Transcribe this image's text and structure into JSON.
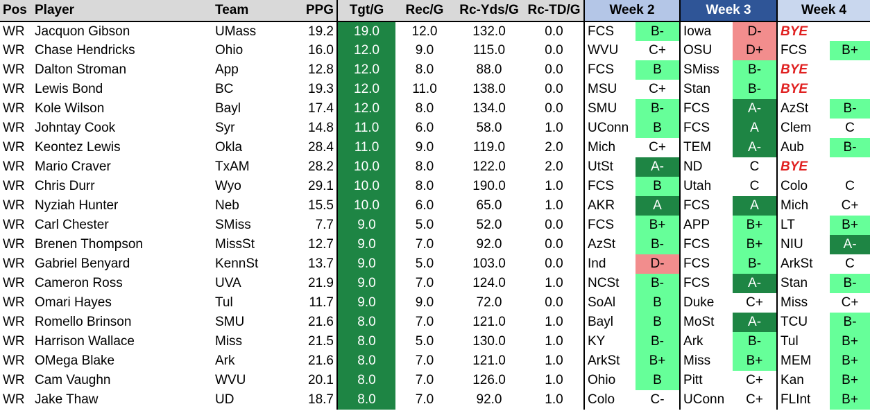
{
  "headers": {
    "pos": "Pos",
    "player": "Player",
    "team": "Team",
    "ppg": "PPG",
    "tgt": "Tgt/G",
    "rec": "Rec/G",
    "yds": "Rc-Yds/G",
    "td": "Rc-TD/G",
    "week2": "Week 2",
    "week3": "Week 3",
    "week4": "Week 4"
  },
  "colors": {
    "good": "#66ff99",
    "great": "#1e8544",
    "bad": "#f28d8d",
    "bye": "#e02020",
    "week3_header": "#2f5597"
  },
  "rows": [
    {
      "pos": "WR",
      "player": "Jacquon Gibson",
      "team": "UMass",
      "ppg": "19.2",
      "tgt": "19.0",
      "rec": "12.0",
      "yds": "132.0",
      "td": "0.0",
      "w2": {
        "opp": "FCS",
        "grade": "B-",
        "tone": "good"
      },
      "w3": {
        "opp": "Iowa",
        "grade": "D-",
        "tone": "bad"
      },
      "w4": {
        "opp": "BYE",
        "grade": "",
        "tone": "none",
        "bye": true
      }
    },
    {
      "pos": "WR",
      "player": "Chase Hendricks",
      "team": "Ohio",
      "ppg": "16.0",
      "tgt": "12.0",
      "rec": "9.0",
      "yds": "115.0",
      "td": "0.0",
      "w2": {
        "opp": "WVU",
        "grade": "C+",
        "tone": "none"
      },
      "w3": {
        "opp": "OSU",
        "grade": "D+",
        "tone": "bad"
      },
      "w4": {
        "opp": "FCS",
        "grade": "B+",
        "tone": "good"
      }
    },
    {
      "pos": "WR",
      "player": "Dalton Stroman",
      "team": "App",
      "ppg": "12.8",
      "tgt": "12.0",
      "rec": "8.0",
      "yds": "88.0",
      "td": "0.0",
      "w2": {
        "opp": "FCS",
        "grade": "B",
        "tone": "good"
      },
      "w3": {
        "opp": "SMiss",
        "grade": "B-",
        "tone": "good"
      },
      "w4": {
        "opp": "BYE",
        "grade": "",
        "tone": "none",
        "bye": true
      }
    },
    {
      "pos": "WR",
      "player": "Lewis Bond",
      "team": "BC",
      "ppg": "19.3",
      "tgt": "12.0",
      "rec": "11.0",
      "yds": "138.0",
      "td": "0.0",
      "w2": {
        "opp": "MSU",
        "grade": "C+",
        "tone": "none"
      },
      "w3": {
        "opp": "Stan",
        "grade": "B-",
        "tone": "good"
      },
      "w4": {
        "opp": "BYE",
        "grade": "",
        "tone": "none",
        "bye": true
      }
    },
    {
      "pos": "WR",
      "player": "Kole Wilson",
      "team": "Bayl",
      "ppg": "17.4",
      "tgt": "12.0",
      "rec": "8.0",
      "yds": "134.0",
      "td": "0.0",
      "w2": {
        "opp": "SMU",
        "grade": "B-",
        "tone": "good"
      },
      "w3": {
        "opp": "FCS",
        "grade": "A-",
        "tone": "great"
      },
      "w4": {
        "opp": "AzSt",
        "grade": "B-",
        "tone": "good"
      }
    },
    {
      "pos": "WR",
      "player": "Johntay Cook",
      "team": "Syr",
      "ppg": "14.8",
      "tgt": "11.0",
      "rec": "6.0",
      "yds": "58.0",
      "td": "1.0",
      "w2": {
        "opp": "UConn",
        "grade": "B",
        "tone": "good"
      },
      "w3": {
        "opp": "FCS",
        "grade": "A",
        "tone": "great"
      },
      "w4": {
        "opp": "Clem",
        "grade": "C",
        "tone": "none"
      }
    },
    {
      "pos": "WR",
      "player": "Keontez Lewis",
      "team": "Okla",
      "ppg": "28.4",
      "tgt": "11.0",
      "rec": "9.0",
      "yds": "119.0",
      "td": "2.0",
      "w2": {
        "opp": "Mich",
        "grade": "C+",
        "tone": "none"
      },
      "w3": {
        "opp": "TEM",
        "grade": "A-",
        "tone": "great"
      },
      "w4": {
        "opp": "Aub",
        "grade": "B-",
        "tone": "good"
      }
    },
    {
      "pos": "WR",
      "player": "Mario Craver",
      "team": "TxAM",
      "ppg": "28.2",
      "tgt": "10.0",
      "rec": "8.0",
      "yds": "122.0",
      "td": "2.0",
      "w2": {
        "opp": "UtSt",
        "grade": "A-",
        "tone": "great"
      },
      "w3": {
        "opp": "ND",
        "grade": "C",
        "tone": "none"
      },
      "w4": {
        "opp": "BYE",
        "grade": "",
        "tone": "none",
        "bye": true
      }
    },
    {
      "pos": "WR",
      "player": "Chris Durr",
      "team": "Wyo",
      "ppg": "29.1",
      "tgt": "10.0",
      "rec": "8.0",
      "yds": "190.0",
      "td": "1.0",
      "w2": {
        "opp": "FCS",
        "grade": "B",
        "tone": "good"
      },
      "w3": {
        "opp": "Utah",
        "grade": "C",
        "tone": "none"
      },
      "w4": {
        "opp": "Colo",
        "grade": "C",
        "tone": "none"
      }
    },
    {
      "pos": "WR",
      "player": "Nyziah Hunter",
      "team": "Neb",
      "ppg": "15.5",
      "tgt": "10.0",
      "rec": "6.0",
      "yds": "65.0",
      "td": "1.0",
      "w2": {
        "opp": "AKR",
        "grade": "A",
        "tone": "great"
      },
      "w3": {
        "opp": "FCS",
        "grade": "A",
        "tone": "great"
      },
      "w4": {
        "opp": "Mich",
        "grade": "C+",
        "tone": "none"
      }
    },
    {
      "pos": "WR",
      "player": "Carl Chester",
      "team": "SMiss",
      "ppg": "7.7",
      "tgt": "9.0",
      "rec": "5.0",
      "yds": "52.0",
      "td": "0.0",
      "w2": {
        "opp": "FCS",
        "grade": "B+",
        "tone": "good"
      },
      "w3": {
        "opp": "APP",
        "grade": "B+",
        "tone": "good"
      },
      "w4": {
        "opp": "LT",
        "grade": "B+",
        "tone": "good"
      }
    },
    {
      "pos": "WR",
      "player": "Brenen Thompson",
      "team": "MissSt",
      "ppg": "12.7",
      "tgt": "9.0",
      "rec": "7.0",
      "yds": "92.0",
      "td": "0.0",
      "w2": {
        "opp": "AzSt",
        "grade": "B-",
        "tone": "good"
      },
      "w3": {
        "opp": "FCS",
        "grade": "B+",
        "tone": "good"
      },
      "w4": {
        "opp": "NIU",
        "grade": "A-",
        "tone": "great"
      }
    },
    {
      "pos": "WR",
      "player": "Gabriel Benyard",
      "team": "KennSt",
      "ppg": "13.7",
      "tgt": "9.0",
      "rec": "5.0",
      "yds": "103.0",
      "td": "0.0",
      "w2": {
        "opp": "Ind",
        "grade": "D-",
        "tone": "bad"
      },
      "w3": {
        "opp": "FCS",
        "grade": "B-",
        "tone": "good"
      },
      "w4": {
        "opp": "ArkSt",
        "grade": "C",
        "tone": "none"
      }
    },
    {
      "pos": "WR",
      "player": "Cameron Ross",
      "team": "UVA",
      "ppg": "21.9",
      "tgt": "9.0",
      "rec": "7.0",
      "yds": "124.0",
      "td": "1.0",
      "w2": {
        "opp": "NCSt",
        "grade": "B-",
        "tone": "good"
      },
      "w3": {
        "opp": "FCS",
        "grade": "A-",
        "tone": "great"
      },
      "w4": {
        "opp": "Stan",
        "grade": "B-",
        "tone": "good"
      }
    },
    {
      "pos": "WR",
      "player": "Omari Hayes",
      "team": "Tul",
      "ppg": "11.7",
      "tgt": "9.0",
      "rec": "9.0",
      "yds": "72.0",
      "td": "0.0",
      "w2": {
        "opp": "SoAl",
        "grade": "B",
        "tone": "good"
      },
      "w3": {
        "opp": "Duke",
        "grade": "C+",
        "tone": "none"
      },
      "w4": {
        "opp": "Miss",
        "grade": "C+",
        "tone": "none"
      }
    },
    {
      "pos": "WR",
      "player": "Romello Brinson",
      "team": "SMU",
      "ppg": "21.6",
      "tgt": "8.0",
      "rec": "7.0",
      "yds": "121.0",
      "td": "1.0",
      "w2": {
        "opp": "Bayl",
        "grade": "B",
        "tone": "good"
      },
      "w3": {
        "opp": "MoSt",
        "grade": "A-",
        "tone": "great"
      },
      "w4": {
        "opp": "TCU",
        "grade": "B-",
        "tone": "good"
      }
    },
    {
      "pos": "WR",
      "player": "Harrison Wallace",
      "team": "Miss",
      "ppg": "21.5",
      "tgt": "8.0",
      "rec": "5.0",
      "yds": "130.0",
      "td": "1.0",
      "w2": {
        "opp": "KY",
        "grade": "B-",
        "tone": "good"
      },
      "w3": {
        "opp": "Ark",
        "grade": "B-",
        "tone": "good"
      },
      "w4": {
        "opp": "Tul",
        "grade": "B+",
        "tone": "good"
      }
    },
    {
      "pos": "WR",
      "player": "OMega Blake",
      "team": "Ark",
      "ppg": "21.6",
      "tgt": "8.0",
      "rec": "7.0",
      "yds": "121.0",
      "td": "1.0",
      "w2": {
        "opp": "ArkSt",
        "grade": "B+",
        "tone": "good"
      },
      "w3": {
        "opp": "Miss",
        "grade": "B+",
        "tone": "good"
      },
      "w4": {
        "opp": "MEM",
        "grade": "B+",
        "tone": "good"
      }
    },
    {
      "pos": "WR",
      "player": "Cam Vaughn",
      "team": "WVU",
      "ppg": "20.1",
      "tgt": "8.0",
      "rec": "7.0",
      "yds": "126.0",
      "td": "1.0",
      "w2": {
        "opp": "Ohio",
        "grade": "B",
        "tone": "good"
      },
      "w3": {
        "opp": "Pitt",
        "grade": "C+",
        "tone": "none"
      },
      "w4": {
        "opp": "Kan",
        "grade": "B+",
        "tone": "good"
      }
    },
    {
      "pos": "WR",
      "player": "Jake Thaw",
      "team": "UD",
      "ppg": "18.7",
      "tgt": "8.0",
      "rec": "7.0",
      "yds": "92.0",
      "td": "1.0",
      "w2": {
        "opp": "Colo",
        "grade": "C-",
        "tone": "none"
      },
      "w3": {
        "opp": "UConn",
        "grade": "C+",
        "tone": "none"
      },
      "w4": {
        "opp": "FLInt",
        "grade": "B+",
        "tone": "good"
      }
    }
  ]
}
